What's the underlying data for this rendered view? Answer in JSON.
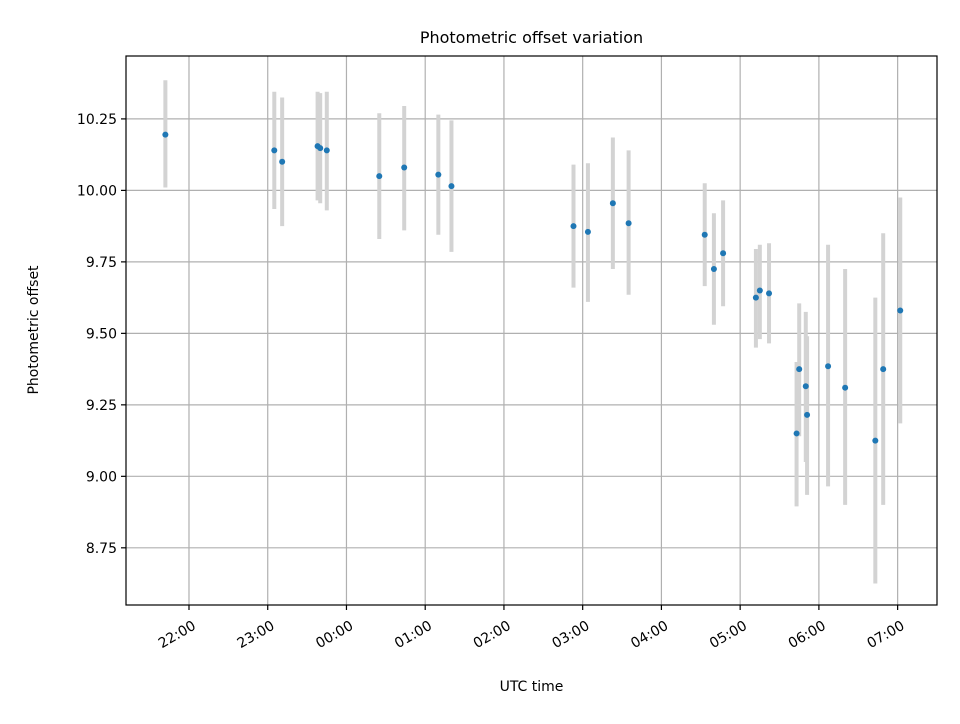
{
  "chart_data": {
    "type": "scatter",
    "title": "Photometric offset variation",
    "xlabel": "UTC time",
    "ylabel": "Photometric offset",
    "x_ticks": [
      "22:00",
      "23:00",
      "00:00",
      "01:00",
      "02:00",
      "03:00",
      "04:00",
      "05:00",
      "06:00",
      "07:00"
    ],
    "x_tick_hours": [
      22,
      23,
      24,
      25,
      26,
      27,
      28,
      29,
      30,
      31
    ],
    "xlim_hours": [
      21.2,
      31.5
    ],
    "y_ticks": [
      "8.75",
      "9.00",
      "9.25",
      "9.50",
      "9.75",
      "10.00",
      "10.25"
    ],
    "y_tick_values": [
      8.75,
      9.0,
      9.25,
      9.5,
      9.75,
      10.0,
      10.25
    ],
    "ylim": [
      8.55,
      10.47
    ],
    "grid": true,
    "colors": {
      "point": "#1f77b4",
      "errorbar": "#d3d3d3",
      "grid": "#b0b0b0"
    },
    "points": [
      {
        "t": "21:42",
        "y": 10.195,
        "lo": 10.01,
        "hi": 10.385
      },
      {
        "t": "23:05",
        "y": 10.14,
        "lo": 9.935,
        "hi": 10.345
      },
      {
        "t": "23:11",
        "y": 10.1,
        "lo": 9.875,
        "hi": 10.325
      },
      {
        "t": "23:38",
        "y": 10.155,
        "lo": 9.965,
        "hi": 10.345
      },
      {
        "t": "23:40",
        "y": 10.148,
        "lo": 9.955,
        "hi": 10.34
      },
      {
        "t": "23:45",
        "y": 10.14,
        "lo": 9.93,
        "hi": 10.345
      },
      {
        "t": "00:25",
        "y": 10.05,
        "lo": 9.83,
        "hi": 10.27
      },
      {
        "t": "00:44",
        "y": 10.08,
        "lo": 9.86,
        "hi": 10.295
      },
      {
        "t": "01:10",
        "y": 10.055,
        "lo": 9.845,
        "hi": 10.265
      },
      {
        "t": "01:20",
        "y": 10.015,
        "lo": 9.785,
        "hi": 10.245
      },
      {
        "t": "02:53",
        "y": 9.875,
        "lo": 9.66,
        "hi": 10.09
      },
      {
        "t": "03:04",
        "y": 9.855,
        "lo": 9.61,
        "hi": 10.095
      },
      {
        "t": "03:23",
        "y": 9.955,
        "lo": 9.725,
        "hi": 10.185
      },
      {
        "t": "03:35",
        "y": 9.885,
        "lo": 9.635,
        "hi": 10.14
      },
      {
        "t": "04:33",
        "y": 9.845,
        "lo": 9.665,
        "hi": 10.025
      },
      {
        "t": "04:40",
        "y": 9.725,
        "lo": 9.53,
        "hi": 9.92
      },
      {
        "t": "04:47",
        "y": 9.78,
        "lo": 9.595,
        "hi": 9.965
      },
      {
        "t": "05:12",
        "y": 9.625,
        "lo": 9.45,
        "hi": 9.795
      },
      {
        "t": "05:15",
        "y": 9.65,
        "lo": 9.48,
        "hi": 9.81
      },
      {
        "t": "05:22",
        "y": 9.64,
        "lo": 9.465,
        "hi": 9.815
      },
      {
        "t": "05:43",
        "y": 9.15,
        "lo": 8.895,
        "hi": 9.4
      },
      {
        "t": "05:45",
        "y": 9.375,
        "lo": 9.14,
        "hi": 9.605
      },
      {
        "t": "05:50",
        "y": 9.315,
        "lo": 9.05,
        "hi": 9.575
      },
      {
        "t": "05:51",
        "y": 9.215,
        "lo": 8.935,
        "hi": 9.49
      },
      {
        "t": "06:07",
        "y": 9.385,
        "lo": 8.965,
        "hi": 9.81
      },
      {
        "t": "06:20",
        "y": 9.31,
        "lo": 8.9,
        "hi": 9.725
      },
      {
        "t": "06:43",
        "y": 9.125,
        "lo": 8.625,
        "hi": 9.625
      },
      {
        "t": "06:49",
        "y": 9.375,
        "lo": 8.9,
        "hi": 9.85
      },
      {
        "t": "07:02",
        "y": 9.58,
        "lo": 9.185,
        "hi": 9.975
      }
    ]
  }
}
